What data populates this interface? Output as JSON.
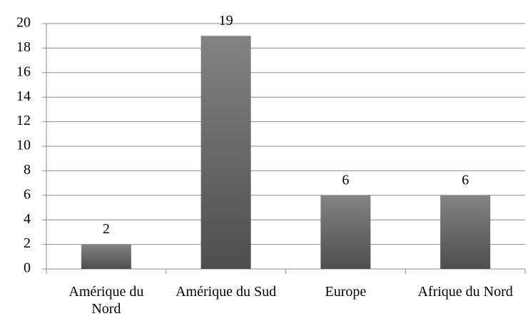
{
  "chart_data": {
    "type": "bar",
    "categories": [
      "Amérique du Nord",
      "Amérique du Sud",
      "Europe",
      "Afrique du Nord"
    ],
    "values": [
      2,
      19,
      6,
      6
    ],
    "color": "#666666",
    "ylim": [
      0,
      20
    ],
    "yticks": [
      0,
      2,
      4,
      6,
      8,
      10,
      12,
      14,
      16,
      18,
      20
    ],
    "grid": true
  }
}
